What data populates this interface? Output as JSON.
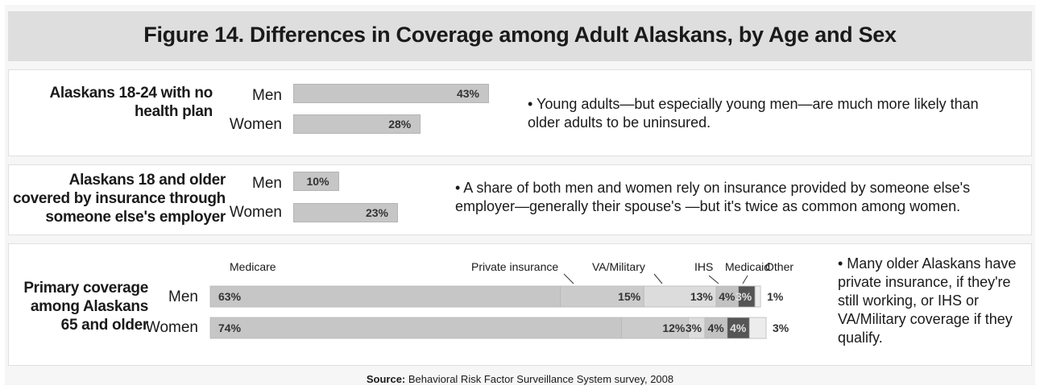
{
  "title": "Figure 14. Differences in Coverage among Adult Alaskans, by Age and Sex",
  "source_label": "Source:",
  "source_text": "Behavioral Risk Factor Surveillance System survey, 2008",
  "colors": {
    "bar": "#c6c6c6",
    "bar_border": "#b5b5b5",
    "dark": "#555555",
    "panel": "#ffffff",
    "background": "#f6f6f6"
  },
  "chart_data": [
    {
      "type": "bar",
      "group_label": "Alaskans 18-24 with no health plan",
      "categories": [
        "Men",
        "Women"
      ],
      "values": [
        43,
        28
      ],
      "value_labels": [
        "43%",
        "28%"
      ],
      "note": "• Young adults—but especially young men—are much more likely than older adults to be uninsured."
    },
    {
      "type": "bar",
      "group_label": "Alaskans 18 and older covered by insurance through someone else's employer",
      "categories": [
        "Men",
        "Women"
      ],
      "values": [
        10,
        23
      ],
      "value_labels": [
        "10%",
        "23%"
      ],
      "note": "• A share of both men and women rely on insurance provided by someone else's employer—generally their spouse's —but it's twice as common among women."
    },
    {
      "type": "bar",
      "stacked": true,
      "group_label": "Primary coverage among Alaskans 65 and older",
      "categories": [
        "Men",
        "Women"
      ],
      "series": [
        {
          "name": "Medicare",
          "values": [
            63,
            74
          ],
          "labels": [
            "63%",
            "74%"
          ]
        },
        {
          "name": "Private insurance",
          "values": [
            15,
            12
          ],
          "labels": [
            "15%",
            "12%"
          ]
        },
        {
          "name": "VA/Military",
          "values": [
            13,
            3
          ],
          "labels": [
            "13%",
            "3%"
          ]
        },
        {
          "name": "IHS",
          "values": [
            4,
            4
          ],
          "labels": [
            "4%",
            "4%"
          ]
        },
        {
          "name": "Medicaid",
          "values": [
            3,
            4
          ],
          "labels": [
            "3%",
            "4%"
          ]
        },
        {
          "name": "Other",
          "values": [
            1,
            3
          ],
          "labels": [
            "1%",
            "3%"
          ]
        }
      ],
      "note": "• Many older Alaskans have private insurance, if they're still working, or IHS or VA/Military coverage if they qualify."
    }
  ]
}
